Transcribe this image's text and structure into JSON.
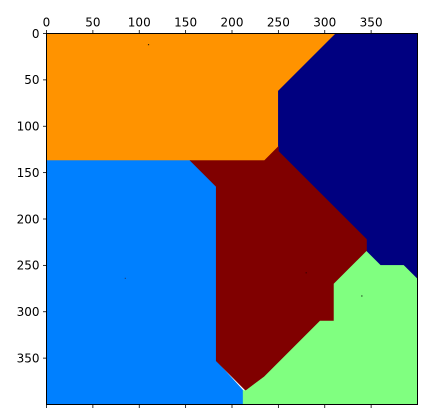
{
  "chart_data": {
    "type": "heatmap",
    "description_kind": "label map image (imshow) with five colored regions",
    "x_axis": {
      "position": "top",
      "lim": [
        0,
        400
      ],
      "tick_values": [
        0,
        50,
        100,
        150,
        200,
        250,
        300,
        350
      ],
      "tick_labels": [
        "0",
        "50",
        "100",
        "150",
        "200",
        "250",
        "300",
        "350"
      ]
    },
    "y_axis": {
      "position": "left",
      "lim": [
        0,
        400
      ],
      "inverted": true,
      "tick_values": [
        0,
        50,
        100,
        150,
        200,
        250,
        300,
        350
      ],
      "tick_labels": [
        "0",
        "50",
        "100",
        "150",
        "200",
        "250",
        "300",
        "350"
      ]
    },
    "bottom_ticks": [
      0,
      50,
      100,
      150,
      200,
      250,
      300,
      350
    ],
    "regions": [
      {
        "id": "region-orange",
        "color": "#ff9300",
        "polygon": [
          [
            0,
            0
          ],
          [
            312,
            0
          ],
          [
            250,
            62
          ],
          [
            250,
            122
          ],
          [
            235,
            137
          ],
          [
            0,
            137
          ]
        ]
      },
      {
        "id": "region-navy",
        "color": "#000080",
        "polygon": [
          [
            312,
            0
          ],
          [
            400,
            0
          ],
          [
            400,
            265
          ],
          [
            385,
            250
          ],
          [
            360,
            250
          ],
          [
            345,
            235
          ],
          [
            345,
            222
          ],
          [
            250,
            127
          ],
          [
            250,
            62
          ]
        ]
      },
      {
        "id": "region-blue",
        "color": "#0080ff",
        "polygon": [
          [
            0,
            137
          ],
          [
            155,
            137
          ],
          [
            183,
            165
          ],
          [
            183,
            353
          ],
          [
            212,
            385
          ],
          [
            212,
            400
          ],
          [
            0,
            400
          ]
        ]
      },
      {
        "id": "region-maroon",
        "color": "#800000",
        "polygon": [
          [
            155,
            137
          ],
          [
            235,
            137
          ],
          [
            250,
            122
          ],
          [
            250,
            127
          ],
          [
            345,
            222
          ],
          [
            345,
            235
          ],
          [
            330,
            250
          ],
          [
            310,
            270
          ],
          [
            310,
            310
          ],
          [
            295,
            310
          ],
          [
            235,
            370
          ],
          [
            215,
            385
          ],
          [
            183,
            353
          ],
          [
            183,
            165
          ]
        ]
      },
      {
        "id": "region-green",
        "color": "#80ff80",
        "polygon": [
          [
            345,
            235
          ],
          [
            360,
            250
          ],
          [
            385,
            250
          ],
          [
            400,
            265
          ],
          [
            400,
            400
          ],
          [
            212,
            400
          ],
          [
            212,
            385
          ],
          [
            215,
            385
          ],
          [
            235,
            370
          ],
          [
            295,
            310
          ],
          [
            310,
            310
          ],
          [
            310,
            270
          ],
          [
            330,
            250
          ]
        ]
      }
    ],
    "specks": [
      {
        "x": 110,
        "y": 12,
        "color": "#3a2a10"
      },
      {
        "x": 340,
        "y": 283,
        "color": "#1a3a1a"
      },
      {
        "x": 280,
        "y": 258,
        "color": "#3a0000"
      },
      {
        "x": 85,
        "y": 264,
        "color": "#1a4a8a"
      }
    ]
  }
}
